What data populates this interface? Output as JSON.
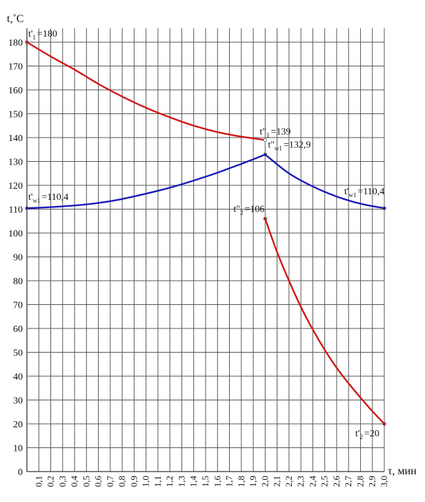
{
  "chart_data": {
    "type": "line",
    "title": "",
    "ylabel": "t,˚C",
    "xlabel": "τ, мин",
    "xlim": [
      0,
      3.0
    ],
    "ylim": [
      0,
      180
    ],
    "grid": true,
    "x_ticks": [
      "0,1",
      "0,2",
      "0,3",
      "0,4",
      "0,5",
      "0,6",
      "0,7",
      "0,8",
      "0,9",
      "1,0",
      "1,1",
      "1,2",
      "1,3",
      "1,4",
      "1,5",
      "1,6",
      "1,7",
      "1,8",
      "1,9",
      "2,0",
      "2,1",
      "2,2",
      "2,3",
      "2,4",
      "2,5",
      "2,6",
      "2,7",
      "2,8",
      "2,9",
      "3,0"
    ],
    "y_ticks": [
      "0",
      "10",
      "20",
      "30",
      "40",
      "50",
      "60",
      "70",
      "80",
      "90",
      "100",
      "110",
      "120",
      "130",
      "140",
      "150",
      "160",
      "170",
      "180"
    ],
    "series": [
      {
        "name": "t1",
        "color": "#d01818",
        "x": [
          0,
          0.2,
          0.4,
          0.6,
          0.8,
          1.0,
          1.2,
          1.4,
          1.6,
          1.8,
          2.0
        ],
        "y": [
          180,
          174,
          168.5,
          162.5,
          157.2,
          152.5,
          148.5,
          145,
          142.3,
          140.4,
          139
        ]
      },
      {
        "name": "tw1-heating",
        "color": "#1a1ab8",
        "x": [
          0,
          0.25,
          0.5,
          0.75,
          1.0,
          1.2,
          1.4,
          1.6,
          1.8,
          1.9,
          2.0
        ],
        "y": [
          110.4,
          111,
          112,
          113.8,
          116.5,
          119,
          122,
          125.3,
          129,
          130.9,
          132.9
        ]
      },
      {
        "name": "tw1-cooling",
        "color": "#1a1ab8",
        "x": [
          2.0,
          2.2,
          2.4,
          2.6,
          2.8,
          3.0
        ],
        "y": [
          132.9,
          125,
          119.5,
          115.3,
          112.3,
          110.4
        ]
      },
      {
        "name": "t2",
        "color": "#d01818",
        "x": [
          2.0,
          2.1,
          2.2,
          2.3,
          2.4,
          2.5,
          2.6,
          2.7,
          2.8,
          2.9,
          3.0
        ],
        "y": [
          106,
          92,
          80,
          69,
          59.5,
          51,
          43.5,
          37,
          31,
          25.3,
          20
        ]
      }
    ],
    "annotations": [
      {
        "id": "t1-start",
        "pre": "t'",
        "sub": "1",
        "post": "=180",
        "x": 0,
        "y": 180,
        "dx": 2,
        "dy": -8,
        "marker": "#d01818"
      },
      {
        "id": "t1-end",
        "pre": "t\"",
        "sub": "1",
        "post": "=139",
        "x": 2.0,
        "y": 139,
        "dx": -8,
        "dy": -8,
        "marker": "#ffffff"
      },
      {
        "id": "tw1-start",
        "pre": "t'",
        "sub": "w1",
        "post": "=110,4",
        "x": 0,
        "y": 110.4,
        "dx": 2,
        "dy": -12,
        "marker": "#1a1ab8"
      },
      {
        "id": "tw1-peak",
        "pre": "t\"",
        "sub": "w1",
        "post": "=132,9",
        "x": 2.0,
        "y": 132.9,
        "dx": 4,
        "dy": -10,
        "marker": "#1a1ab8"
      },
      {
        "id": "tw1-end",
        "pre": "t'",
        "sub": "w1",
        "post": "=110,4",
        "x": 3.0,
        "y": 110.4,
        "dx": -58,
        "dy": -20,
        "marker": "#1a1ab8"
      },
      {
        "id": "t2-start",
        "pre": "t\"",
        "sub": "2",
        "post": "=106",
        "x": 2.0,
        "y": 106,
        "dx": -46,
        "dy": -10,
        "marker": "#d01818"
      },
      {
        "id": "t2-end",
        "pre": "t'",
        "sub": "2",
        "post": "=20",
        "x": 3.0,
        "y": 20,
        "dx": -42,
        "dy": 18,
        "marker": "#d01818"
      }
    ]
  }
}
